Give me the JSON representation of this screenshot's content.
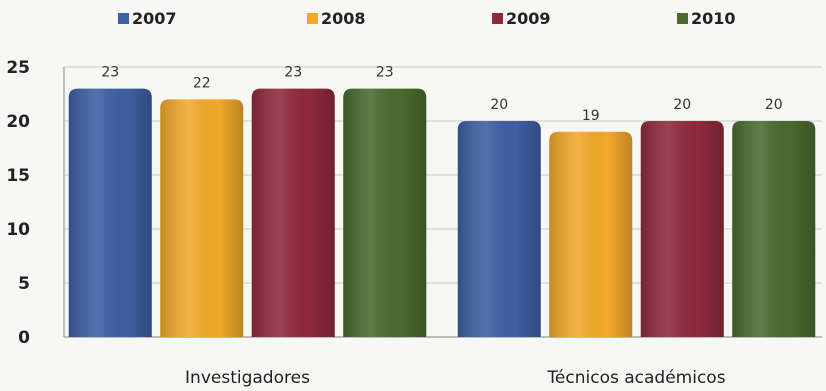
{
  "chart_data": {
    "type": "bar",
    "categories": [
      "Investigadores",
      "Técnicos académicos"
    ],
    "series": [
      {
        "name": "2007",
        "values": [
          23,
          20
        ],
        "color": "#3e5fa3"
      },
      {
        "name": "2008",
        "values": [
          22,
          19
        ],
        "color": "#f2a92a"
      },
      {
        "name": "2009",
        "values": [
          23,
          20
        ],
        "color": "#8e2a3c"
      },
      {
        "name": "2010",
        "values": [
          23,
          20
        ],
        "color": "#4a6a2e"
      }
    ],
    "ylim": [
      0,
      25
    ],
    "yticks": [
      0,
      5,
      10,
      15,
      20,
      25
    ],
    "grid": true,
    "legend_position": "top",
    "data_labels": true
  }
}
